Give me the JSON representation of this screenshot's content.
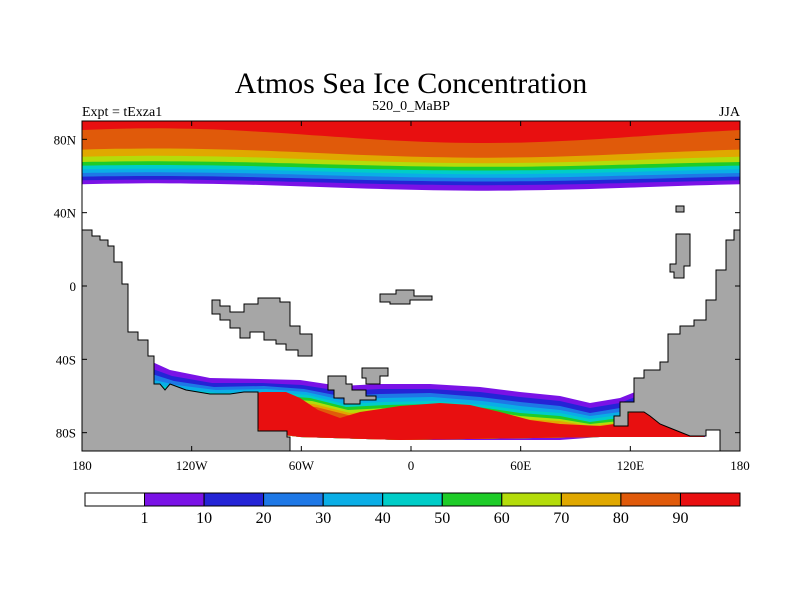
{
  "chart_data": {
    "type": "heatmap",
    "title": "Atmos Sea Ice Concentration",
    "subtitle": "520_0_MaBP",
    "left_label": "Expt = tExza1",
    "right_label": "JJA",
    "x_ticks": [
      {
        "lon": -180,
        "label": "180"
      },
      {
        "lon": -120,
        "label": "120W"
      },
      {
        "lon": -60,
        "label": "60W"
      },
      {
        "lon": 0,
        "label": "0"
      },
      {
        "lon": 60,
        "label": "60E"
      },
      {
        "lon": 120,
        "label": "120E"
      },
      {
        "lon": 180,
        "label": "180"
      }
    ],
    "y_ticks": [
      {
        "lat": 80,
        "label": "80N"
      },
      {
        "lat": 40,
        "label": "40N"
      },
      {
        "lat": 0,
        "label": "0"
      },
      {
        "lat": -40,
        "label": "40S"
      },
      {
        "lat": -80,
        "label": "80S"
      }
    ],
    "xlim": [
      -180,
      180
    ],
    "ylim": [
      -90,
      90
    ],
    "contour_levels": [
      1,
      10,
      20,
      30,
      40,
      50,
      60,
      70,
      80,
      90
    ],
    "colorbar_labels": [
      "1",
      "10",
      "20",
      "30",
      "40",
      "50",
      "60",
      "70",
      "80",
      "90"
    ],
    "colors": [
      "#ffffff",
      "#7a12e6",
      "#2424d6",
      "#1e78e6",
      "#0aaee6",
      "#00cdc8",
      "#1ecc28",
      "#b4dc0a",
      "#e0a800",
      "#e05a0a",
      "#e80f10"
    ],
    "land_color": "#a6a6a6",
    "north_band": {
      "edge_lat_by_level": [
        {
          "level": 1,
          "lat_min": 52,
          "lat_max": 56
        },
        {
          "level": 10,
          "lat_min": 55,
          "lat_max": 58
        },
        {
          "level": 20,
          "lat_min": 57,
          "lat_max": 60
        },
        {
          "level": 30,
          "lat_min": 59,
          "lat_max": 62
        },
        {
          "level": 40,
          "lat_min": 61,
          "lat_max": 64
        },
        {
          "level": 50,
          "lat_min": 63,
          "lat_max": 66
        },
        {
          "level": 60,
          "lat_min": 65,
          "lat_max": 68
        },
        {
          "level": 70,
          "lat_min": 67,
          "lat_max": 71
        },
        {
          "level": 80,
          "lat_min": 70,
          "lat_max": 75
        },
        {
          "level": 90,
          "lat_min": 78,
          "lat_max": 86
        }
      ]
    },
    "south_band": {
      "ice_edge_lat_range": [
        -52,
        -66
      ],
      "max_concentration_region": "Antarctic margin 80W to 120E"
    }
  }
}
